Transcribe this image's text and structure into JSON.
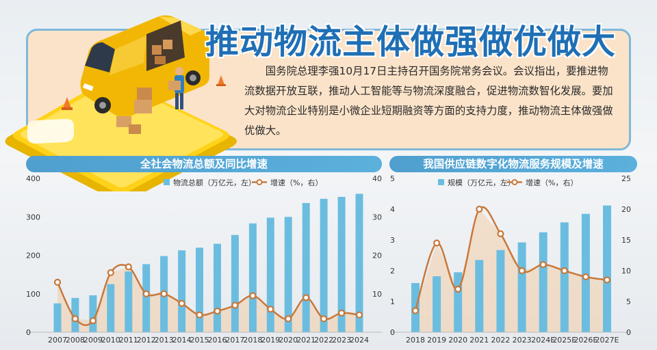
{
  "header": {
    "headline": "推动物流主体做强做优做大",
    "summary": "国务院总理李强10月17日主持召开国务院常务会议。会议指出，要推进物流数据开放互联，推动人工智能等与物流深度融合，促进物流数智化发展。要加大对物流企业特别是小微企业短期融资等方面的支持力度，推动物流主体做强做优做大。"
  },
  "colors": {
    "bar": "#6bbde0",
    "line": "#c8783a",
    "marker_fill": "#ffffff",
    "area": "#f3c89a",
    "title_bar": "#5aa9d6",
    "headline": "#1f6fb5"
  },
  "chart_data": [
    {
      "type": "bar",
      "title": "全社会物流总额及同比增速",
      "categories": [
        "2007",
        "2008",
        "2009",
        "2010",
        "2011",
        "2012",
        "2013",
        "2014",
        "2015",
        "2016",
        "2017",
        "2018",
        "2019",
        "2020",
        "2021",
        "2022",
        "2023",
        "2024"
      ],
      "series": [
        {
          "name": "物流总额（万亿元，左）",
          "type": "bar",
          "axis": "left",
          "values": [
            75,
            89,
            96,
            125,
            158,
            177,
            198,
            213,
            220,
            230,
            253,
            283,
            298,
            300,
            336,
            347,
            352,
            360
          ]
        },
        {
          "name": "增速（%，右）",
          "type": "line",
          "axis": "right",
          "values": [
            13,
            3.5,
            3,
            15.5,
            17,
            10,
            10,
            7.5,
            4.5,
            5.5,
            7,
            9.5,
            6,
            3.5,
            9,
            3.5,
            5,
            4.5
          ]
        }
      ],
      "left_axis": {
        "ylim": [
          0,
          400
        ],
        "ticks": [
          "0",
          "100",
          "200",
          "300",
          "400"
        ]
      },
      "right_axis": {
        "ylim": [
          0,
          40
        ],
        "ticks": [
          "10",
          "20",
          "30",
          "40"
        ]
      },
      "legend_position": "top",
      "grid": false
    },
    {
      "type": "bar",
      "title": "我国供应链数字化物流服务规模及增速",
      "categories": [
        "2018",
        "2019",
        "2020",
        "2021",
        "2022",
        "2023",
        "2024E",
        "2025E",
        "2026E",
        "2027E"
      ],
      "series": [
        {
          "name": "规模（万亿元，左）",
          "type": "bar",
          "axis": "left",
          "values": [
            1.6,
            1.82,
            1.95,
            2.35,
            2.67,
            2.92,
            3.25,
            3.57,
            3.85,
            4.12
          ]
        },
        {
          "name": "增速（%，右）",
          "type": "line",
          "axis": "right",
          "values": [
            3.5,
            14.5,
            7,
            20,
            16,
            10,
            11,
            10,
            9,
            8.5
          ]
        }
      ],
      "left_axis": {
        "ylim": [
          0,
          5
        ],
        "ticks": [
          "0",
          "1",
          "2",
          "3",
          "4",
          "5"
        ]
      },
      "right_axis": {
        "ylim": [
          0,
          25
        ],
        "ticks": [
          "0",
          "5",
          "10",
          "15",
          "20",
          "25"
        ]
      },
      "legend_position": "top",
      "grid": false
    }
  ]
}
